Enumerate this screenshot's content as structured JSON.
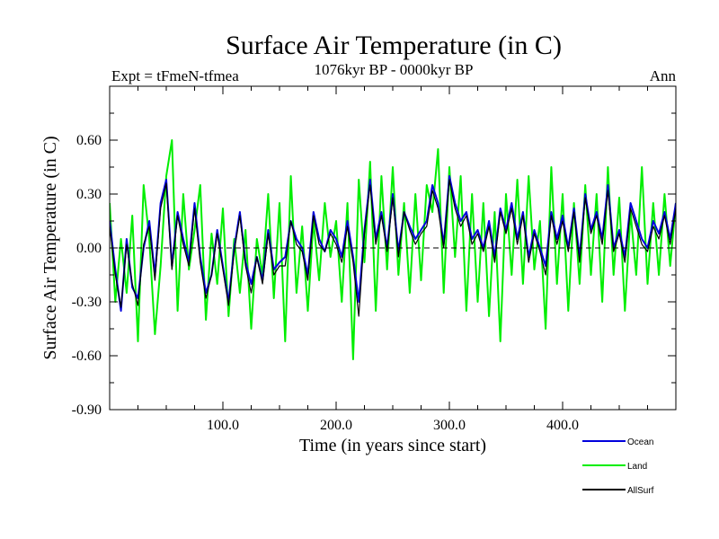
{
  "chart_data": {
    "type": "line",
    "title": "Surface Air Temperature (in C)",
    "subtitle_left": "Expt = tFmeN-tfmea",
    "subtitle_center": "1076kyr BP - 0000kyr BP",
    "subtitle_right": "Ann",
    "xlabel": "Time (in years since start)",
    "ylabel": "Surface Air Temperature (in C)",
    "xlim": [
      0,
      500
    ],
    "ylim": [
      -0.9,
      0.9
    ],
    "x_ticks": [
      100,
      200,
      300,
      400
    ],
    "x_tick_labels": [
      "100.0",
      "200.0",
      "300.0",
      "400.0"
    ],
    "y_ticks": [
      -0.9,
      -0.6,
      -0.3,
      0.0,
      0.3,
      0.6
    ],
    "y_tick_labels": [
      "-0.90",
      "-0.60",
      "-0.30",
      "0.00",
      "0.30",
      "0.60"
    ],
    "reference_line": 0.0,
    "colors": {
      "ocean": "#0000dd",
      "land": "#00ee00",
      "allsurf": "#000000",
      "axis": "#000000",
      "reference": "#000000"
    },
    "series": [
      {
        "name": "Land",
        "color": "#00ee00",
        "x_step": 5,
        "values": [
          0.25,
          -0.3,
          0.05,
          -0.25,
          0.18,
          -0.52,
          0.35,
          0.05,
          -0.48,
          -0.1,
          0.4,
          0.6,
          -0.35,
          0.3,
          -0.12,
          0.1,
          0.35,
          -0.4,
          0.08,
          -0.2,
          0.22,
          -0.38,
          0.05,
          -0.25,
          0.1,
          -0.45,
          0.05,
          -0.15,
          0.3,
          -0.28,
          0.25,
          -0.52,
          0.4,
          -0.25,
          0.12,
          -0.35,
          0.15,
          -0.18,
          0.25,
          -0.05,
          0.15,
          -0.3,
          0.25,
          -0.62,
          0.38,
          -0.08,
          0.48,
          -0.35,
          0.4,
          -0.12,
          0.45,
          -0.15,
          0.25,
          -0.25,
          0.3,
          -0.18,
          0.35,
          0.2,
          0.55,
          -0.25,
          0.45,
          -0.05,
          0.4,
          -0.35,
          0.3,
          -0.3,
          0.25,
          -0.38,
          0.2,
          -0.52,
          0.3,
          -0.15,
          0.38,
          -0.2,
          0.4,
          -0.12,
          0.15,
          -0.45,
          0.45,
          -0.2,
          0.3,
          -0.35,
          0.25,
          -0.2,
          0.35,
          -0.15,
          0.3,
          -0.3,
          0.45,
          -0.15,
          0.28,
          -0.35,
          0.2,
          -0.15,
          0.45,
          -0.2,
          0.25,
          -0.15,
          0.3,
          -0.1,
          0.25
        ]
      },
      {
        "name": "Ocean",
        "color": "#0000dd",
        "x_step": 5,
        "values": [
          0.15,
          -0.12,
          -0.35,
          0.05,
          -0.22,
          -0.28,
          0.0,
          0.15,
          -0.15,
          0.25,
          0.38,
          -0.1,
          0.2,
          0.05,
          -0.08,
          0.25,
          -0.05,
          -0.25,
          -0.15,
          0.1,
          -0.1,
          -0.3,
          0.0,
          0.2,
          -0.08,
          -0.2,
          -0.05,
          -0.18,
          0.1,
          -0.12,
          -0.08,
          -0.05,
          0.15,
          0.05,
          0.0,
          -0.15,
          0.2,
          0.05,
          -0.02,
          0.1,
          0.05,
          -0.05,
          0.15,
          -0.05,
          -0.3,
          0.1,
          0.38,
          0.05,
          0.2,
          0.0,
          0.3,
          -0.02,
          0.2,
          0.12,
          0.05,
          0.1,
          0.15,
          0.35,
          0.25,
          0.02,
          0.4,
          0.25,
          0.15,
          0.2,
          0.05,
          0.1,
          0.0,
          0.15,
          -0.05,
          0.22,
          0.1,
          0.25,
          0.05,
          0.2,
          -0.05,
          0.1,
          0.0,
          -0.1,
          0.2,
          0.05,
          0.18,
          0.0,
          0.22,
          -0.05,
          0.3,
          0.1,
          0.2,
          0.05,
          0.35,
          0.0,
          0.1,
          -0.05,
          0.25,
          0.15,
          0.05,
          0.0,
          0.15,
          0.08,
          0.2,
          0.05,
          0.25
        ]
      },
      {
        "name": "AllSurf",
        "color": "#000000",
        "x_step": 5,
        "values": [
          0.12,
          -0.15,
          -0.33,
          0.02,
          -0.2,
          -0.32,
          0.02,
          0.12,
          -0.18,
          0.22,
          0.36,
          -0.12,
          0.18,
          0.02,
          -0.1,
          0.22,
          -0.08,
          -0.28,
          -0.15,
          0.08,
          -0.12,
          -0.32,
          -0.02,
          0.18,
          -0.1,
          -0.25,
          -0.05,
          -0.2,
          0.08,
          -0.15,
          -0.1,
          -0.1,
          0.15,
          0.02,
          -0.02,
          -0.18,
          0.18,
          0.02,
          -0.02,
          0.08,
          0.02,
          -0.08,
          0.12,
          -0.08,
          -0.38,
          0.08,
          0.35,
          0.02,
          0.18,
          -0.02,
          0.28,
          -0.05,
          0.2,
          0.1,
          0.02,
          0.08,
          0.12,
          0.32,
          0.22,
          0.0,
          0.38,
          0.22,
          0.12,
          0.18,
          0.02,
          0.08,
          -0.02,
          0.12,
          -0.08,
          0.2,
          0.08,
          0.22,
          0.02,
          0.18,
          -0.08,
          0.08,
          -0.02,
          -0.15,
          0.18,
          0.02,
          0.15,
          -0.02,
          0.2,
          -0.08,
          0.28,
          0.08,
          0.18,
          0.02,
          0.32,
          -0.02,
          0.08,
          -0.08,
          0.22,
          0.12,
          0.02,
          -0.02,
          0.12,
          0.05,
          0.18,
          0.02,
          0.22
        ]
      }
    ],
    "legend": [
      {
        "label": "Ocean",
        "color": "#0000dd"
      },
      {
        "label": "Land",
        "color": "#00ee00"
      },
      {
        "label": "AllSurf",
        "color": "#000000"
      }
    ],
    "legend_position": "bottom-right"
  }
}
